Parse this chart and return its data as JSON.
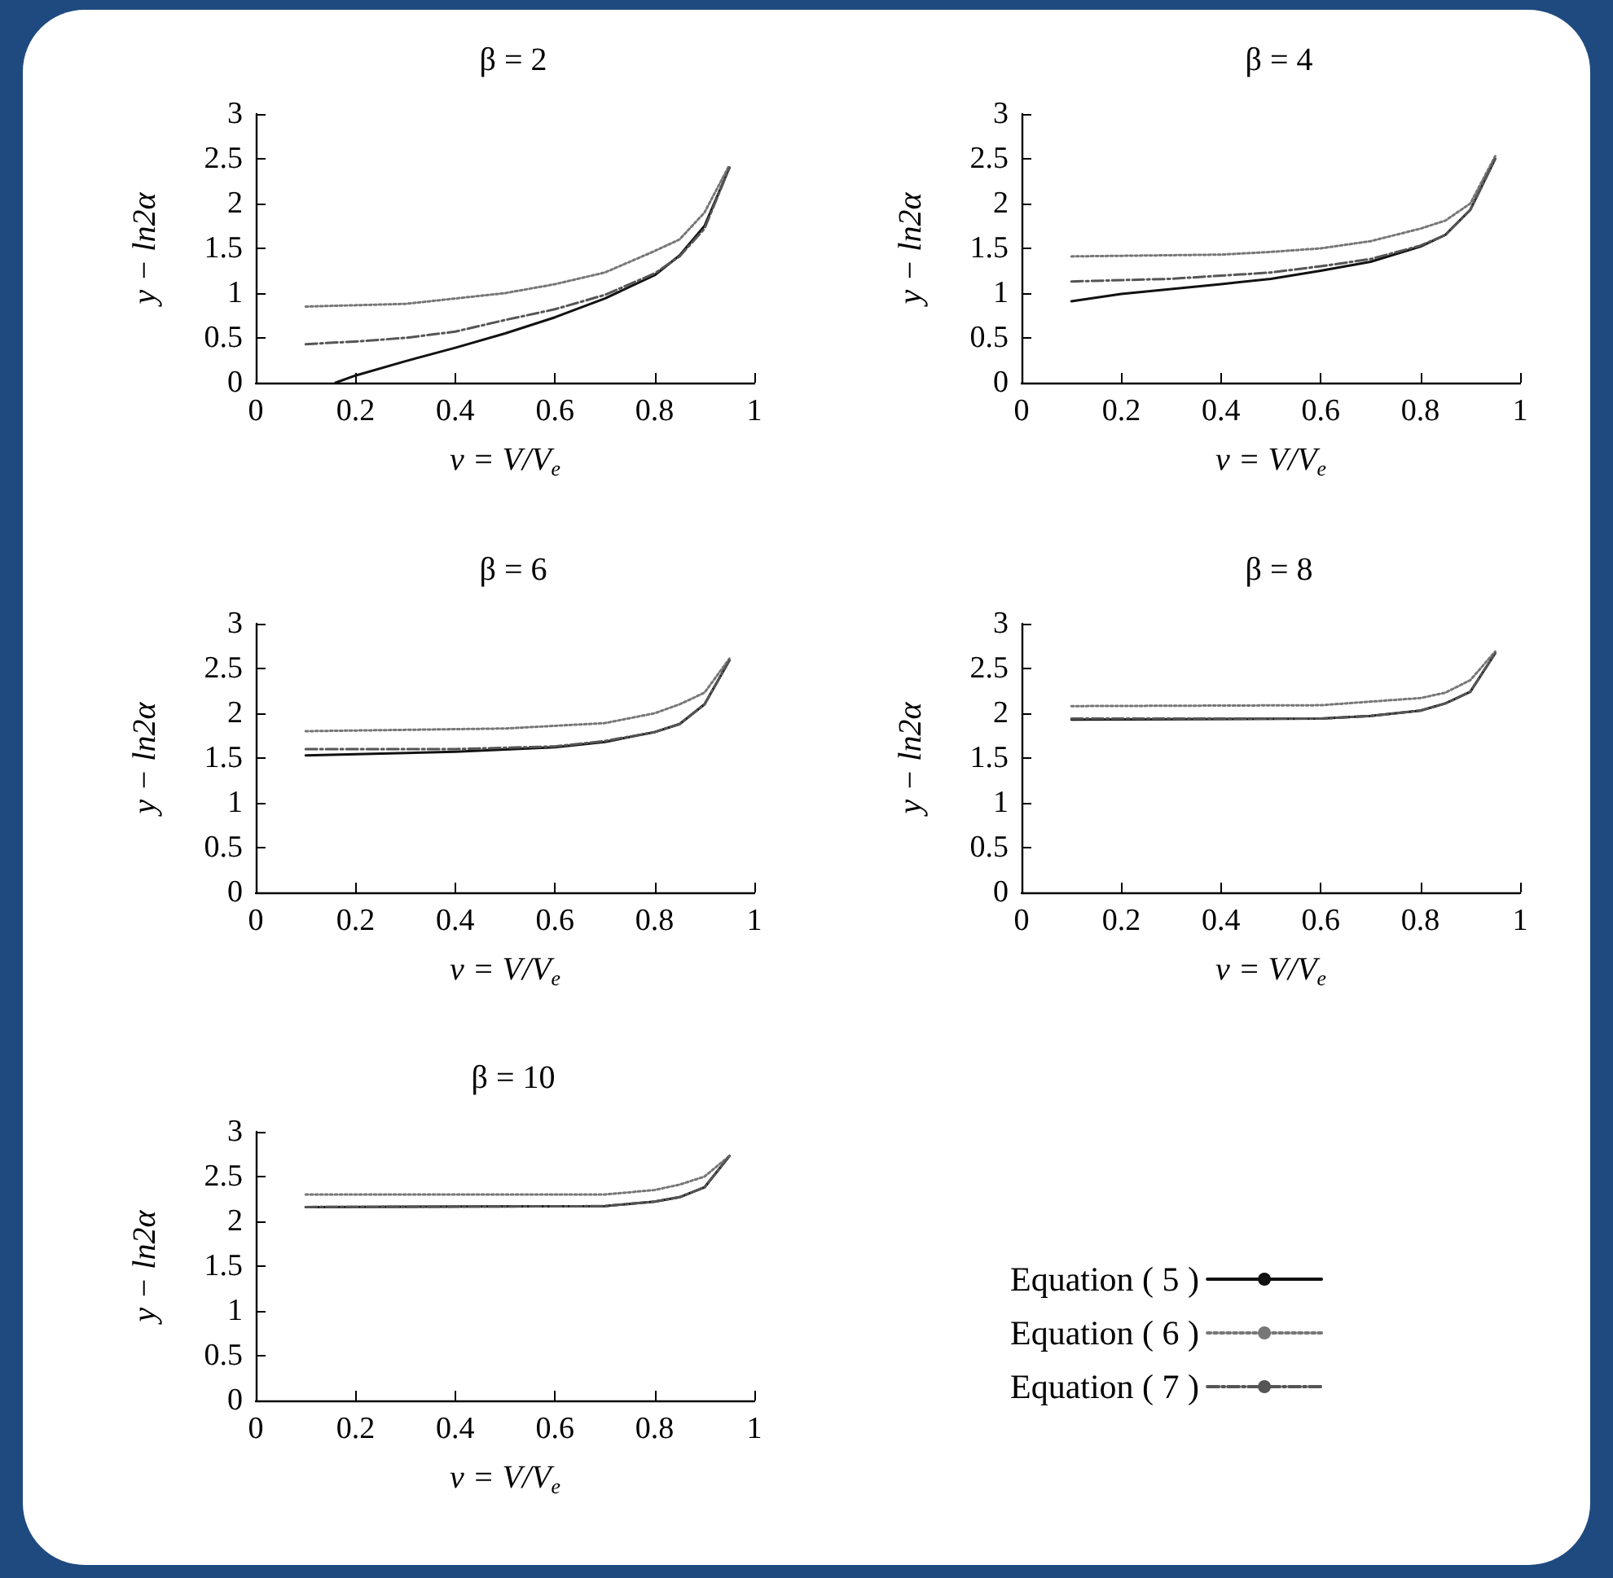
{
  "chart_data": [
    {
      "type": "line",
      "title": "β = 2",
      "xlabel": "v = V/V$_{e}$",
      "ylabel": "y − ln2α",
      "xlim": [
        0,
        1
      ],
      "xticks": [
        0,
        0.2,
        0.4,
        0.6,
        0.8,
        1
      ],
      "ylim": [
        0,
        3
      ],
      "yticks": [
        0,
        0.5,
        1,
        1.5,
        2,
        2.5,
        3
      ],
      "grid": false,
      "series": [
        {
          "color": "#111111",
          "line_style": "solid",
          "x": [
            0.16,
            0.2,
            0.3,
            0.4,
            0.5,
            0.6,
            0.7,
            0.8,
            0.85,
            0.9,
            0.95
          ],
          "values": [
            0,
            0.08,
            0.24,
            0.39,
            0.55,
            0.73,
            0.94,
            1.2,
            1.42,
            1.75,
            2.4
          ]
        },
        {
          "color": "#777777",
          "line_style": "dotted",
          "x": [
            0.1,
            0.3,
            0.5,
            0.6,
            0.7,
            0.8,
            0.85,
            0.9,
            0.95
          ],
          "values": [
            0.85,
            0.88,
            1.0,
            1.1,
            1.23,
            1.47,
            1.6,
            1.9,
            2.43
          ]
        },
        {
          "color": "#555555",
          "line_style": "dashdot",
          "x": [
            0.1,
            0.2,
            0.3,
            0.4,
            0.5,
            0.6,
            0.7,
            0.8,
            0.85,
            0.9,
            0.95
          ],
          "values": [
            0.43,
            0.46,
            0.5,
            0.57,
            0.7,
            0.82,
            0.98,
            1.22,
            1.41,
            1.72,
            2.4
          ]
        }
      ]
    },
    {
      "type": "line",
      "title": "β = 4",
      "xlabel": "v = V/V$_{e}$",
      "ylabel": "y − ln2α",
      "xlim": [
        0,
        1
      ],
      "xticks": [
        0,
        0.2,
        0.4,
        0.6,
        0.8,
        1
      ],
      "ylim": [
        0,
        3
      ],
      "yticks": [
        0,
        0.5,
        1,
        1.5,
        2,
        2.5,
        3
      ],
      "grid": false,
      "series": [
        {
          "color": "#111111",
          "line_style": "solid",
          "x": [
            0.1,
            0.2,
            0.4,
            0.5,
            0.6,
            0.7,
            0.8,
            0.85,
            0.9,
            0.95
          ],
          "values": [
            0.91,
            0.99,
            1.1,
            1.16,
            1.25,
            1.35,
            1.52,
            1.65,
            1.93,
            2.5
          ]
        },
        {
          "color": "#777777",
          "line_style": "dotted",
          "x": [
            0.1,
            0.4,
            0.5,
            0.6,
            0.7,
            0.8,
            0.85,
            0.9,
            0.95
          ],
          "values": [
            1.41,
            1.43,
            1.46,
            1.5,
            1.58,
            1.72,
            1.81,
            2.0,
            2.53
          ]
        },
        {
          "color": "#555555",
          "line_style": "dashdot",
          "x": [
            0.1,
            0.3,
            0.5,
            0.6,
            0.7,
            0.8,
            0.85,
            0.9,
            0.95
          ],
          "values": [
            1.13,
            1.16,
            1.23,
            1.3,
            1.38,
            1.53,
            1.65,
            1.93,
            2.5
          ]
        }
      ]
    },
    {
      "type": "line",
      "title": "β = 6",
      "xlabel": "v = V/V$_{e}$",
      "ylabel": "y − ln2α",
      "xlim": [
        0,
        1
      ],
      "xticks": [
        0,
        0.2,
        0.4,
        0.6,
        0.8,
        1
      ],
      "ylim": [
        0,
        3
      ],
      "yticks": [
        0,
        0.5,
        1,
        1.5,
        2,
        2.5,
        3
      ],
      "grid": false,
      "series": [
        {
          "color": "#111111",
          "line_style": "solid",
          "x": [
            0.1,
            0.4,
            0.6,
            0.7,
            0.8,
            0.85,
            0.9,
            0.95
          ],
          "values": [
            1.53,
            1.57,
            1.62,
            1.68,
            1.79,
            1.88,
            2.1,
            2.59
          ]
        },
        {
          "color": "#777777",
          "line_style": "dotted",
          "x": [
            0.1,
            0.5,
            0.7,
            0.8,
            0.85,
            0.9,
            0.95
          ],
          "values": [
            1.8,
            1.83,
            1.89,
            2.0,
            2.1,
            2.23,
            2.61
          ]
        },
        {
          "color": "#555555",
          "line_style": "dashdot",
          "x": [
            0.1,
            0.4,
            0.6,
            0.7,
            0.8,
            0.85,
            0.9,
            0.95
          ],
          "values": [
            1.6,
            1.6,
            1.63,
            1.69,
            1.79,
            1.88,
            2.1,
            2.59
          ]
        }
      ]
    },
    {
      "type": "line",
      "title": "β = 8",
      "xlabel": "v = V/V$_{e}$",
      "ylabel": "y − ln2α",
      "xlim": [
        0,
        1
      ],
      "xticks": [
        0,
        0.2,
        0.4,
        0.6,
        0.8,
        1
      ],
      "ylim": [
        0,
        3
      ],
      "yticks": [
        0,
        0.5,
        1,
        1.5,
        2,
        2.5,
        3
      ],
      "grid": false,
      "series": [
        {
          "color": "#111111",
          "line_style": "solid",
          "x": [
            0.1,
            0.6,
            0.7,
            0.8,
            0.85,
            0.9,
            0.95
          ],
          "values": [
            1.93,
            1.94,
            1.97,
            2.03,
            2.11,
            2.24,
            2.67
          ]
        },
        {
          "color": "#777777",
          "line_style": "dotted",
          "x": [
            0.1,
            0.6,
            0.8,
            0.85,
            0.9,
            0.95
          ],
          "values": [
            2.08,
            2.09,
            2.17,
            2.23,
            2.37,
            2.69
          ]
        },
        {
          "color": "#555555",
          "line_style": "dashdot",
          "x": [
            0.1,
            0.6,
            0.7,
            0.8,
            0.85,
            0.9,
            0.95
          ],
          "values": [
            1.94,
            1.94,
            1.97,
            2.03,
            2.11,
            2.24,
            2.67
          ]
        }
      ]
    },
    {
      "type": "line",
      "title": "β = 10",
      "xlabel": "v = V/V$_{e}$",
      "ylabel": "y − ln2α",
      "xlim": [
        0,
        1
      ],
      "xticks": [
        0,
        0.2,
        0.4,
        0.6,
        0.8,
        1
      ],
      "ylim": [
        0,
        3
      ],
      "yticks": [
        0,
        0.5,
        1,
        1.5,
        2,
        2.5,
        3
      ],
      "grid": false,
      "legend": "right",
      "series": [
        {
          "name": "Equation ( 5 )",
          "color": "#111111",
          "line_style": "solid",
          "x": [
            0.1,
            0.7,
            0.8,
            0.85,
            0.9,
            0.95
          ],
          "values": [
            2.16,
            2.17,
            2.22,
            2.27,
            2.38,
            2.73
          ]
        },
        {
          "name": "Equation ( 6 )",
          "color": "#777777",
          "line_style": "dotted",
          "x": [
            0.1,
            0.7,
            0.8,
            0.85,
            0.9,
            0.95
          ],
          "values": [
            2.3,
            2.3,
            2.35,
            2.41,
            2.5,
            2.73
          ]
        },
        {
          "name": "Equation ( 7 )",
          "color": "#555555",
          "line_style": "dashdot",
          "x": [
            0.1,
            0.7,
            0.8,
            0.85,
            0.9,
            0.95
          ],
          "values": [
            2.16,
            2.17,
            2.22,
            2.27,
            2.38,
            2.73
          ]
        }
      ]
    }
  ]
}
